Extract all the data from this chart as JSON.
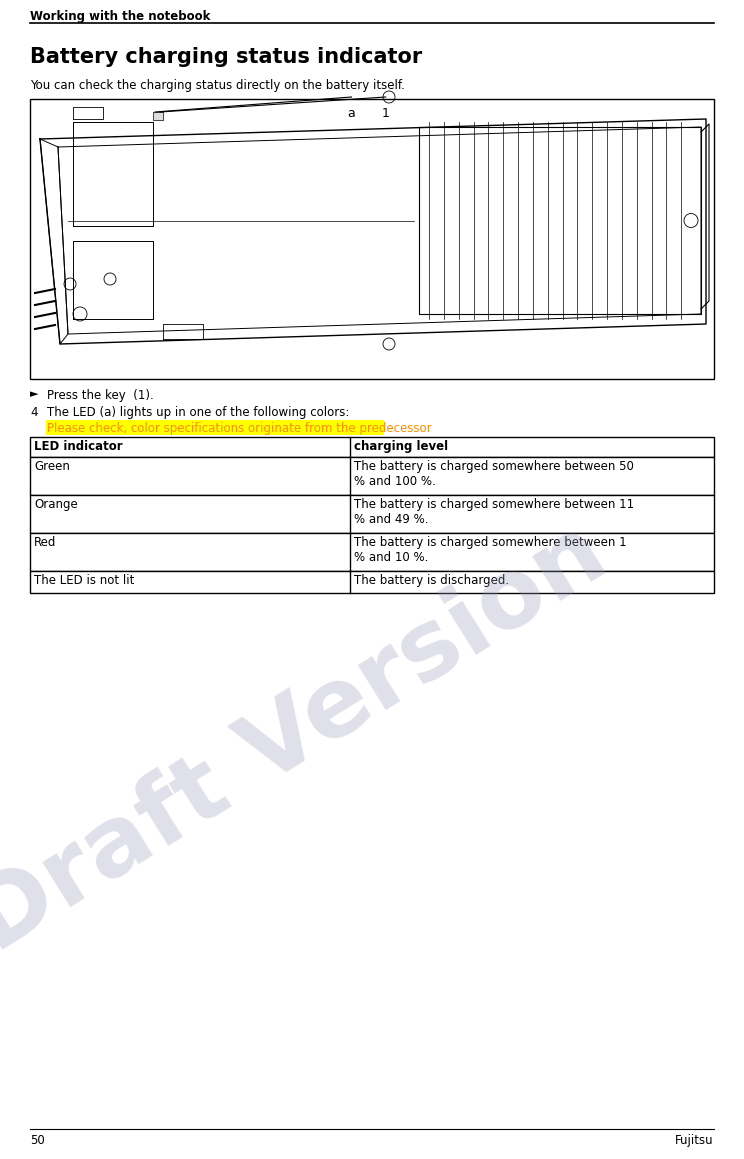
{
  "page_header": "Working with the notebook",
  "section_title": "Battery charging status indicator",
  "section_subtitle": "You can check the charging status directly on the battery itself.",
  "bullet_text": "Press the key  (1).",
  "step_number": "4",
  "step_text": "The LED (a) lights up in one of the following colors:",
  "highlight_text": "Please check, color specifications originate from the predecessor",
  "highlight_bg": "#FFFF00",
  "highlight_fg": "#FF8C00",
  "table_header": [
    "LED indicator",
    "charging level"
  ],
  "table_rows": [
    [
      "Green",
      "The battery is charged somewhere between 50\n% and 100 %."
    ],
    [
      "Orange",
      "The battery is charged somewhere between 11\n% and 49 %."
    ],
    [
      "Red",
      "The battery is charged somewhere between 1\n% and 10 %."
    ],
    [
      "The LED is not lit",
      "The battery is discharged."
    ]
  ],
  "draft_watermark": "Draft Version",
  "draft_color": "#9999BB",
  "page_number": "50",
  "brand": "Fujitsu",
  "bg_color": "#FFFFFF"
}
